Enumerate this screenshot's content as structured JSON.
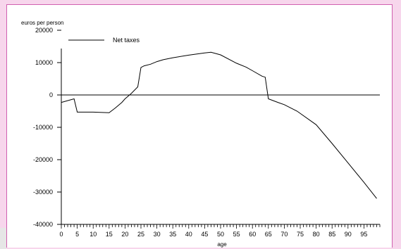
{
  "chart_data": {
    "type": "line",
    "title": "",
    "ylabel": "euros per person",
    "xlabel": "age",
    "xlim": [
      0,
      100
    ],
    "ylim": [
      -40000,
      20000
    ],
    "x_ticks": [
      0,
      5,
      10,
      15,
      20,
      25,
      30,
      35,
      40,
      45,
      50,
      55,
      60,
      65,
      70,
      75,
      80,
      85,
      90,
      95
    ],
    "y_ticks": [
      20000,
      10000,
      0,
      -10000,
      -20000,
      -30000,
      -40000
    ],
    "legend": {
      "position": "top-left",
      "entries": [
        "Net taxes"
      ]
    },
    "series": [
      {
        "name": "Net taxes",
        "x": [
          0,
          4,
          5,
          10,
          15,
          17,
          19,
          20,
          22,
          24,
          25,
          26,
          28,
          30,
          32,
          35,
          40,
          45,
          47,
          50,
          55,
          58,
          60,
          63,
          64,
          65,
          68,
          70,
          74,
          80,
          85,
          90,
          95,
          99
        ],
        "y": [
          -2300,
          -1200,
          -5300,
          -5300,
          -5500,
          -4000,
          -2300,
          -1200,
          500,
          2500,
          8500,
          9000,
          9500,
          10300,
          10900,
          11500,
          12300,
          13000,
          13200,
          12400,
          9800,
          8600,
          7500,
          5800,
          5500,
          -1200,
          -2300,
          -3000,
          -5000,
          -9200,
          -15000,
          -21000,
          -27000,
          -32000
        ]
      }
    ]
  }
}
